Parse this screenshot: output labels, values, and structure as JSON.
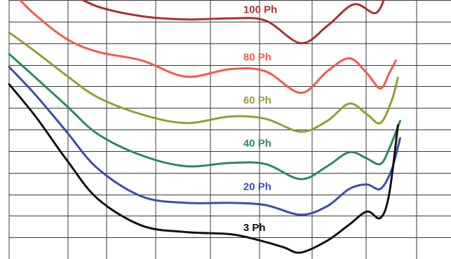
{
  "chart_data": {
    "type": "line",
    "title": "",
    "xlabel": "",
    "ylabel": "",
    "xlim": [
      0,
      10
    ],
    "ylim": [
      0,
      12
    ],
    "grid": true,
    "grid_color": "#3a3a3a",
    "background": "#ffffff",
    "series": [
      {
        "name": "100 Ph",
        "color": "#a83232",
        "label_at": [
          5.3,
          11.4
        ],
        "points": [
          [
            1.3,
            12.4
          ],
          [
            2,
            11.7
          ],
          [
            3,
            11.25
          ],
          [
            4,
            11.1
          ],
          [
            5,
            11.15
          ],
          [
            5.8,
            11.05
          ],
          [
            6.6,
            10.0
          ],
          [
            7.2,
            10.8
          ],
          [
            7.8,
            11.8
          ],
          [
            8.3,
            11.4
          ],
          [
            8.55,
            12.4
          ]
        ]
      },
      {
        "name": "80 Ph",
        "color": "#f05a50",
        "label_at": [
          5.3,
          9.2
        ],
        "points": [
          [
            0.15,
            12.2
          ],
          [
            0.6,
            11.3
          ],
          [
            1.3,
            10.2
          ],
          [
            2,
            9.6
          ],
          [
            3,
            9.2
          ],
          [
            4,
            8.45
          ],
          [
            5,
            8.8
          ],
          [
            5.8,
            8.7
          ],
          [
            6.6,
            7.7
          ],
          [
            7.2,
            8.7
          ],
          [
            7.7,
            9.3
          ],
          [
            8.1,
            8.6
          ],
          [
            8.4,
            7.9
          ],
          [
            8.6,
            8.6
          ],
          [
            8.75,
            9.2
          ]
        ]
      },
      {
        "name": "60 Ph",
        "color": "#9a9a38",
        "label_at": [
          5.3,
          7.2
        ],
        "points": [
          [
            0,
            10.5
          ],
          [
            0.6,
            9.6
          ],
          [
            1.3,
            8.5
          ],
          [
            2,
            7.5
          ],
          [
            3,
            6.7
          ],
          [
            4,
            6.3
          ],
          [
            5,
            6.6
          ],
          [
            5.8,
            6.5
          ],
          [
            6.6,
            5.9
          ],
          [
            7.2,
            6.4
          ],
          [
            7.7,
            7.2
          ],
          [
            8.1,
            6.7
          ],
          [
            8.4,
            6.3
          ],
          [
            8.65,
            7.3
          ],
          [
            8.8,
            8.4
          ]
        ]
      },
      {
        "name": "40 Ph",
        "color": "#2a8a5c",
        "label_at": [
          5.3,
          5.2
        ],
        "points": [
          [
            0,
            9.5
          ],
          [
            0.6,
            8.4
          ],
          [
            1.3,
            7.1
          ],
          [
            2,
            5.8
          ],
          [
            3,
            4.8
          ],
          [
            4,
            4.3
          ],
          [
            5,
            4.45
          ],
          [
            5.8,
            4.4
          ],
          [
            6.6,
            3.7
          ],
          [
            7.2,
            4.3
          ],
          [
            7.7,
            4.95
          ],
          [
            8.1,
            4.65
          ],
          [
            8.4,
            4.4
          ],
          [
            8.6,
            5.1
          ],
          [
            8.85,
            6.4
          ]
        ]
      },
      {
        "name": "20 Ph",
        "color": "#3d4da8",
        "label_at": [
          5.3,
          3.2
        ],
        "points": [
          [
            0,
            8.9
          ],
          [
            0.6,
            7.6
          ],
          [
            1.3,
            5.9
          ],
          [
            2,
            4.2
          ],
          [
            3,
            2.9
          ],
          [
            4,
            2.6
          ],
          [
            5,
            2.6
          ],
          [
            5.8,
            2.5
          ],
          [
            6.6,
            2.05
          ],
          [
            7.2,
            2.45
          ],
          [
            7.7,
            3.25
          ],
          [
            8.1,
            3.45
          ],
          [
            8.4,
            3.25
          ],
          [
            8.65,
            4.1
          ],
          [
            8.85,
            5.6
          ]
        ]
      },
      {
        "name": "3 Ph",
        "color": "#111111",
        "label_at": [
          5.3,
          1.3
        ],
        "points": [
          [
            0,
            8.1
          ],
          [
            0.6,
            6.6
          ],
          [
            1.3,
            4.6
          ],
          [
            2,
            2.8
          ],
          [
            3,
            1.55
          ],
          [
            4,
            1.25
          ],
          [
            5,
            1.15
          ],
          [
            5.6,
            0.9
          ],
          [
            6.2,
            0.55
          ],
          [
            6.6,
            0.3
          ],
          [
            7.2,
            0.85
          ],
          [
            7.7,
            1.6
          ],
          [
            8.1,
            2.2
          ],
          [
            8.4,
            1.9
          ],
          [
            8.6,
            3.0
          ],
          [
            8.8,
            6.2
          ]
        ]
      }
    ]
  }
}
